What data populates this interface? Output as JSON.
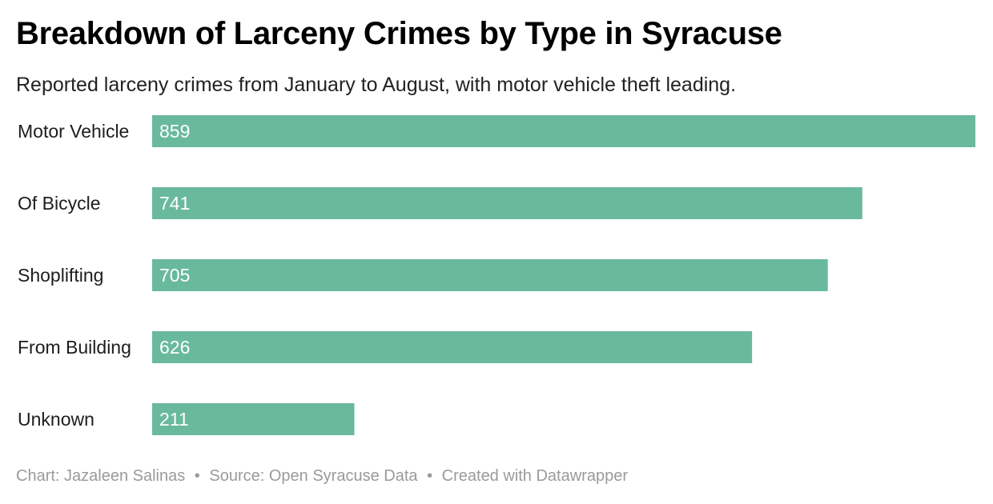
{
  "header": {
    "title": "Breakdown of Larceny Crimes by Type in Syracuse",
    "subtitle": "Reported larceny crimes from January to August, with motor vehicle theft leading."
  },
  "chart_data": {
    "type": "bar",
    "orientation": "horizontal",
    "categories": [
      "Motor Vehicle",
      "Of Bicycle",
      "Shoplifting",
      "From Building",
      "Unknown"
    ],
    "values": [
      859,
      741,
      705,
      626,
      211
    ],
    "xlim": [
      0,
      859
    ],
    "grid": false,
    "bar_color": "#69b99d",
    "value_label_color": "#ffffff"
  },
  "footer": {
    "credit": "Chart: Jazaleen Salinas",
    "source": "Source: Open Syracuse Data",
    "tool": "Created with Datawrapper",
    "separator": "•"
  }
}
